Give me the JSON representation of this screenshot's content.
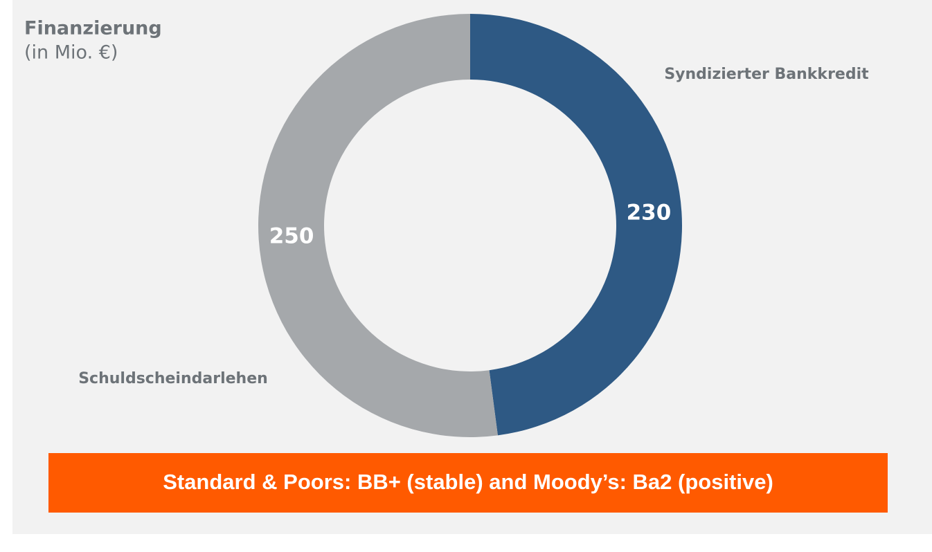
{
  "chart_data": {
    "type": "pie",
    "title": "Finanzierung",
    "subtitle": "(in Mio. €)",
    "categories": [
      "Syndizierter Bankkredit",
      "Schuldscheindarlehen"
    ],
    "values": [
      230,
      250
    ],
    "colors": [
      "#2e5984",
      "#a5a8ab"
    ],
    "donut": true,
    "annotation": "Standard & Poors: BB+ (stable) and Moody’s: Ba2 (positive)"
  }
}
